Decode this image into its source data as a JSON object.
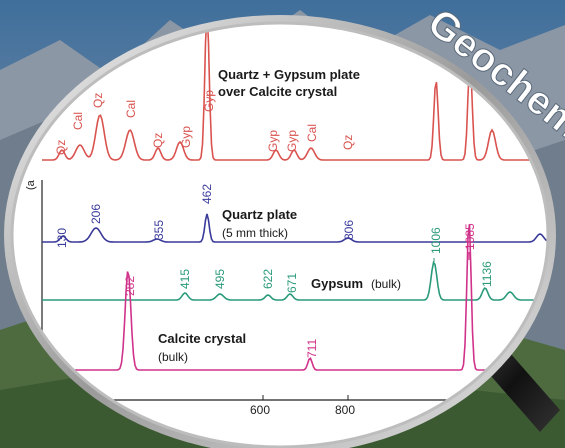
{
  "banner": {
    "text": "Geochem"
  },
  "colors": {
    "qg": "#d9534f",
    "quartz": "#3a3a9a",
    "gypsum": "#2a9a7a",
    "calcite": "#d0328a",
    "text": "#1a1a1a"
  },
  "chart_data": {
    "type": "line",
    "title": "",
    "xlabel": "",
    "ylabel": "",
    "xticks": [
      "600",
      "800"
    ],
    "series": [
      {
        "name": "Quartz + Gypsum plate over Calcite crystal",
        "label_line1": "Quartz + Gypsum plate",
        "label_line2": "over Calcite crystal",
        "peak_labels": [
          "Qz",
          "Cal",
          "Qz",
          "Cal",
          "Qz",
          "Gyp",
          "Gyp",
          "Gyp",
          "Gyp",
          "Cal",
          "Qz"
        ]
      },
      {
        "name": "Quartz plate",
        "label_main": "Quartz plate",
        "label_sub": "(5 mm thick)",
        "peak_labels": [
          "130",
          "206",
          "355",
          "462",
          "806"
        ]
      },
      {
        "name": "Gypsum (bulk)",
        "label_main": "Gypsum",
        "label_sub": "(bulk)",
        "peak_labels": [
          "415",
          "495",
          "622",
          "671",
          "1006",
          "1136"
        ]
      },
      {
        "name": "Calcite crystal (bulk)",
        "label_main": "Calcite crystal",
        "label_sub": "(bulk)",
        "peak_labels": [
          "282",
          "711",
          "1085"
        ]
      }
    ]
  }
}
